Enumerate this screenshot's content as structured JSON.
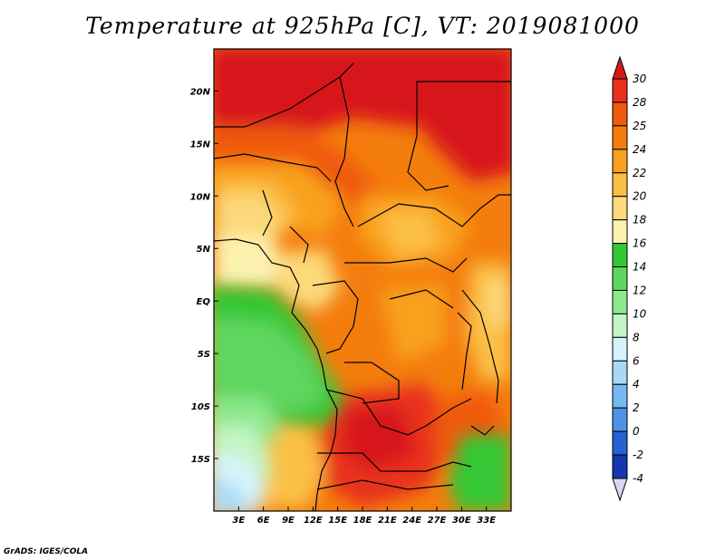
{
  "title": "Temperature at 925hPa [C], VT: 2019081000",
  "footer": "GrADS: IGES/COLA",
  "map": {
    "variable": "Temperature at 925hPa",
    "units": "C",
    "valid_time": "2019081000",
    "lon_range": [
      0,
      36
    ],
    "lat_range": [
      -20,
      24
    ],
    "lon_ticks": [
      "3E",
      "6E",
      "9E",
      "12E",
      "15E",
      "18E",
      "21E",
      "24E",
      "27E",
      "30E",
      "33E"
    ],
    "lat_ticks": [
      "20N",
      "15N",
      "10N",
      "5N",
      "EQ",
      "5S",
      "10S",
      "15S"
    ]
  },
  "colorbar": {
    "levels": [
      "30",
      "28",
      "25",
      "24",
      "22",
      "20",
      "18",
      "16",
      "14",
      "12",
      "10",
      "8",
      "6",
      "4",
      "2",
      "0",
      "-2",
      "-4"
    ],
    "colors": [
      "#d7191c",
      "#e8301c",
      "#f05a0e",
      "#f47d0d",
      "#f8a11f",
      "#fbbf45",
      "#fcd97a",
      "#fcf2b0",
      "#34c734",
      "#5ed65e",
      "#8ee88e",
      "#c3f5c3",
      "#d6f3fb",
      "#a9d8f5",
      "#76b9f0",
      "#4c93e6",
      "#2563d4",
      "#1436b0",
      "#0a1c7a",
      "#d6d6f5"
    ]
  }
}
